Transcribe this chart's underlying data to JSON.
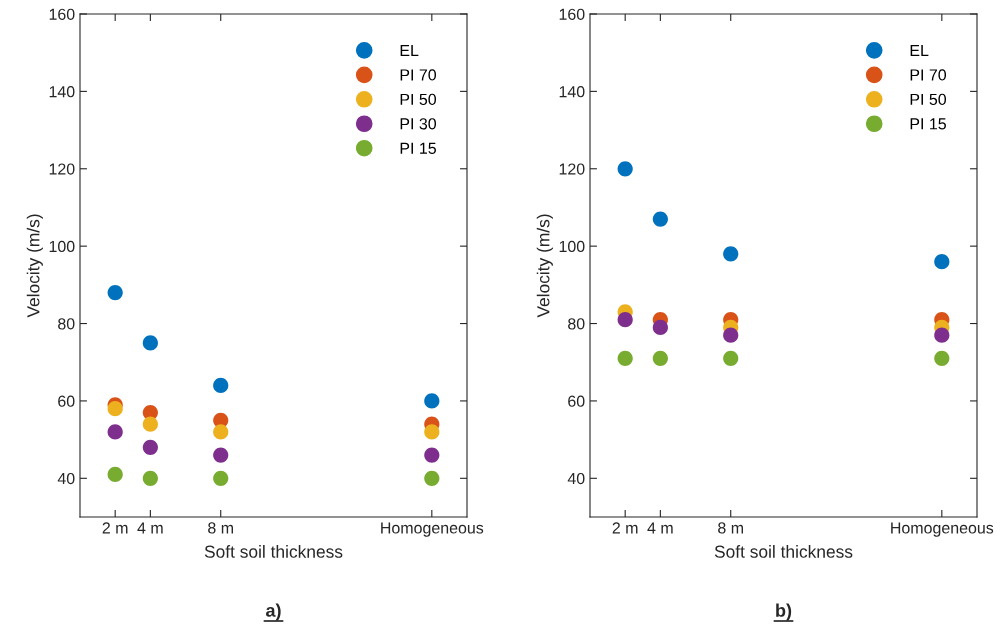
{
  "chart_data": [
    {
      "type": "scatter",
      "title": "a)",
      "xlabel": "Soft soil thickness",
      "ylabel": "Velocity (m/s)",
      "x": [
        2,
        4,
        8,
        20
      ],
      "xlim": [
        0,
        22
      ],
      "xticks": [
        {
          "value": 2,
          "label": "2 m"
        },
        {
          "value": 4,
          "label": "4 m"
        },
        {
          "value": 8,
          "label": "8 m"
        },
        {
          "value": 20,
          "label": "Homogeneous"
        }
      ],
      "ylim": [
        30,
        160
      ],
      "yticks": [
        40,
        60,
        80,
        100,
        120,
        140,
        160
      ],
      "marker": "circle",
      "legend": "top right",
      "grid": false,
      "series": [
        {
          "name": "EL",
          "color": "#0072bd",
          "values": [
            88,
            75,
            64,
            60
          ]
        },
        {
          "name": "PI 70",
          "color": "#d95319",
          "values": [
            59,
            57,
            55,
            54
          ]
        },
        {
          "name": "PI 50",
          "color": "#edb120",
          "values": [
            58,
            54,
            52,
            52
          ]
        },
        {
          "name": "PI 30",
          "color": "#7e2f8e",
          "values": [
            52,
            48,
            46,
            46
          ]
        },
        {
          "name": "PI 15",
          "color": "#77ac30",
          "values": [
            41,
            40,
            40,
            40
          ]
        }
      ]
    },
    {
      "type": "scatter",
      "title": "b)",
      "xlabel": "Soft soil thickness",
      "ylabel": "Velocity (m/s)",
      "x": [
        2,
        4,
        8,
        20
      ],
      "xlim": [
        0,
        22
      ],
      "xticks": [
        {
          "value": 2,
          "label": "2 m"
        },
        {
          "value": 4,
          "label": "4 m"
        },
        {
          "value": 8,
          "label": "8 m"
        },
        {
          "value": 20,
          "label": "Homogeneous"
        }
      ],
      "ylim": [
        30,
        160
      ],
      "yticks": [
        40,
        60,
        80,
        100,
        120,
        140,
        160
      ],
      "marker": "circle",
      "legend": "top right",
      "grid": false,
      "series": [
        {
          "name": "EL",
          "color": "#0072bd",
          "values": [
            120,
            107,
            98,
            96
          ]
        },
        {
          "name": "PI 70",
          "color": "#d95319",
          "values": [
            null,
            81,
            81,
            81
          ]
        },
        {
          "name": "PI 50",
          "color": "#edb120",
          "values": [
            83,
            null,
            79,
            79
          ]
        },
        {
          "color": "#7e2f8e",
          "values": [
            81,
            79,
            77,
            77
          ]
        },
        {
          "name": "PI 15",
          "color": "#77ac30",
          "values": [
            71,
            71,
            71,
            71
          ]
        }
      ]
    }
  ]
}
